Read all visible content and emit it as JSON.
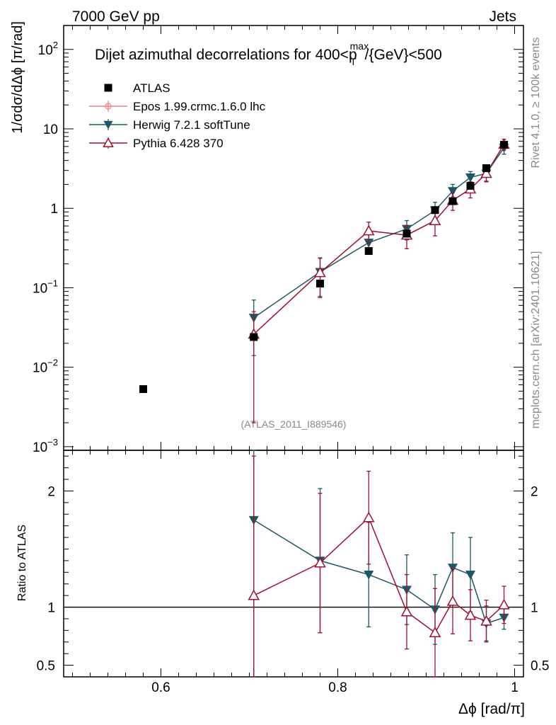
{
  "header": {
    "left": "7000 GeV pp",
    "right": "Jets"
  },
  "side_labels": {
    "rivet": "Rivet 4.1.0, ≥ 100k events",
    "mcplots": "mcplots.cern.ch [arXiv:2401.10621]"
  },
  "chart_data": {
    "type": "scatter",
    "title_prefix": "Dijet azimuthal decorrelations for 400<p",
    "title_sup": "max",
    "title_sub": "T",
    "title_suffix": "/{GeV}<500",
    "analysis_id": "(ATLAS_2011_I889546)",
    "xlabel": "Δϕ [rad/π]",
    "ylabel": "1/σdσ/dΔϕ [π/rad]",
    "ratio_ylabel": "Ratio to ATLAS",
    "xlim": [
      0.49,
      1.01
    ],
    "ylim": [
      0.0009,
      200
    ],
    "ratio_ylim": [
      0.4,
      2.35
    ],
    "x_ticks": [
      {
        "value": 0.6,
        "label": "0.6"
      },
      {
        "value": 0.8,
        "label": "0.8"
      },
      {
        "value": 1.0,
        "label": "1"
      }
    ],
    "y_ticks": [
      {
        "value": 0.001,
        "base": "10",
        "exp": "−3"
      },
      {
        "value": 0.01,
        "base": "10",
        "exp": "−2"
      },
      {
        "value": 0.1,
        "base": "10",
        "exp": "−1"
      },
      {
        "value": 1,
        "base": "1",
        "exp": ""
      },
      {
        "value": 10,
        "base": "10",
        "exp": ""
      },
      {
        "value": 100,
        "base": "10",
        "exp": "2"
      }
    ],
    "ratio_ticks": [
      {
        "value": 0.5,
        "label": "0.5"
      },
      {
        "value": 1,
        "label": "1"
      },
      {
        "value": 2,
        "label": "2"
      }
    ],
    "legend": [
      {
        "name": "ATLAS",
        "marker": "square",
        "color": "#000000"
      },
      {
        "name": "Epos 1.99.crmc.1.6.0 lhc",
        "marker": "cross",
        "color": "#f08080"
      },
      {
        "name": "Herwig 7.2.1 softTune",
        "marker": "triangle-down",
        "color": "#1f5764"
      },
      {
        "name": "Pythia 6.428 370",
        "marker": "triangle-up-open",
        "color": "#a01030"
      }
    ],
    "data": {
      "name": "ATLAS",
      "x": [
        0.58,
        0.705,
        0.78,
        0.835,
        0.878,
        0.91,
        0.93,
        0.95,
        0.968,
        0.988
      ],
      "y": [
        0.0053,
        0.024,
        0.113,
        0.29,
        0.48,
        0.95,
        1.23,
        1.92,
        3.2,
        6.3
      ]
    },
    "series": [
      {
        "name": "Herwig 7.2.1 softTune",
        "color": "#1f5764",
        "marker": "triangle-down",
        "x": [
          0.705,
          0.78,
          0.835,
          0.878,
          0.91,
          0.93,
          0.95,
          0.968,
          0.988
        ],
        "y": [
          0.042,
          0.158,
          0.37,
          0.55,
          0.94,
          1.65,
          2.45,
          2.75,
          5.8
        ],
        "err": [
          0.028,
          0.08,
          0.1,
          0.15,
          0.25,
          0.35,
          0.45,
          0.55,
          1.0
        ],
        "ratio": [
          1.75,
          1.4,
          1.28,
          1.15,
          0.98,
          1.34,
          1.28,
          0.86,
          0.91
        ],
        "ratio_err": [
          1.6,
          0.62,
          0.45,
          0.3,
          0.3,
          0.3,
          0.32,
          0.15,
          0.1
        ]
      },
      {
        "name": "Pythia 6.428 370",
        "color": "#a01030",
        "marker": "triangle-up-open",
        "x": [
          0.705,
          0.78,
          0.835,
          0.878,
          0.91,
          0.93,
          0.95,
          0.968,
          0.988
        ],
        "y": [
          0.026,
          0.155,
          0.52,
          0.46,
          0.7,
          1.26,
          1.75,
          2.75,
          6.4
        ],
        "err": [
          0.024,
          0.08,
          0.15,
          0.15,
          0.25,
          0.32,
          0.4,
          0.6,
          1.0
        ],
        "ratio": [
          1.1,
          1.38,
          1.77,
          0.96,
          0.78,
          1.05,
          0.93,
          0.88,
          1.02
        ],
        "ratio_err": [
          1.2,
          0.6,
          0.4,
          0.32,
          0.38,
          0.28,
          0.22,
          0.18,
          0.16
        ]
      }
    ]
  }
}
